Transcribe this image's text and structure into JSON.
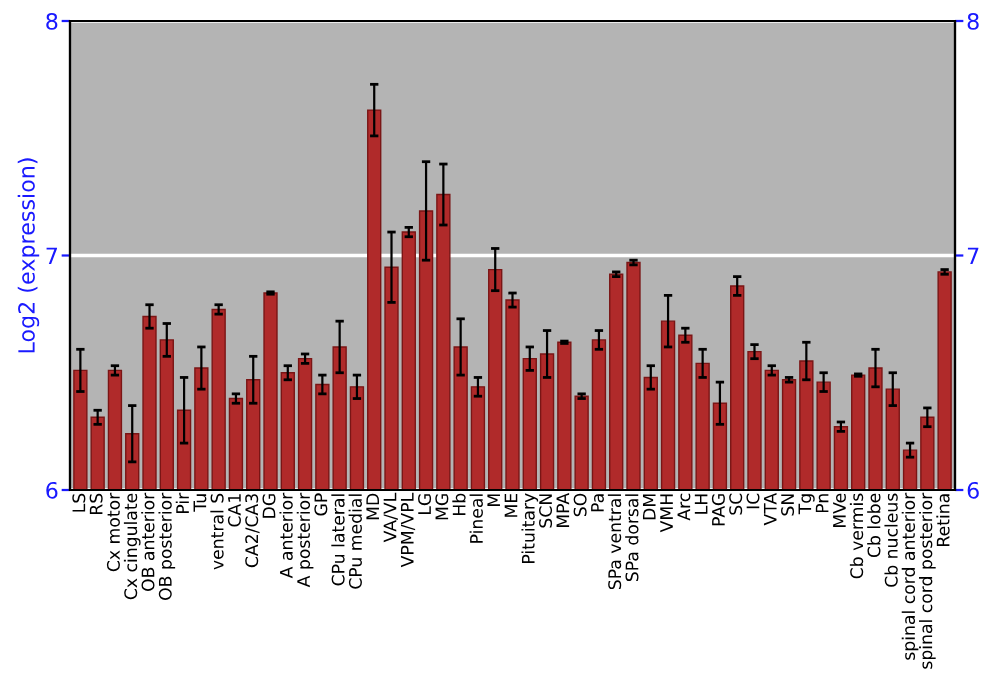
{
  "chart_data": {
    "type": "bar",
    "ylabel": "Log2 (expression)",
    "categories": [
      "LS",
      "RS",
      "Cx motor",
      "Cx cingulate",
      "OB anterior",
      "OB posterior",
      "Pir",
      "Tu",
      "ventral S",
      "CA1",
      "CA2/CA3",
      "DG",
      "A anterior",
      "A posterior",
      "GP",
      "CPu lateral",
      "CPu medial",
      "MD",
      "VA/VL",
      "VPM/VPL",
      "LG",
      "MG",
      "Hb",
      "Pineal",
      "M",
      "ME",
      "Pituitary",
      "SCN",
      "MPA",
      "SO",
      "Pa",
      "SPa ventral",
      "SPa dorsal",
      "DM",
      "VMH",
      "Arc",
      "LH",
      "PAG",
      "SC",
      "IC",
      "VTA",
      "SN",
      "Tg",
      "Pn",
      "MVe",
      "Cb vermis",
      "Cb lobe",
      "Cb nucleus",
      "spinal cord anterior",
      "spinal cord posterior",
      "Retina"
    ],
    "values": [
      6.51,
      6.31,
      6.51,
      6.24,
      6.74,
      6.64,
      6.34,
      6.52,
      6.77,
      6.39,
      6.47,
      6.84,
      6.5,
      6.56,
      6.45,
      6.61,
      6.44,
      7.62,
      6.95,
      7.1,
      7.19,
      7.26,
      6.61,
      6.44,
      6.94,
      6.81,
      6.56,
      6.58,
      6.63,
      6.4,
      6.64,
      6.92,
      6.97,
      6.48,
      6.72,
      6.66,
      6.54,
      6.37,
      6.87,
      6.59,
      6.51,
      6.47,
      6.55,
      6.46,
      6.27,
      6.49,
      6.52,
      6.43,
      6.17,
      6.31,
      6.93
    ],
    "errors": [
      0.09,
      0.03,
      0.02,
      0.12,
      0.05,
      0.07,
      0.14,
      0.09,
      0.02,
      0.02,
      0.1,
      0.005,
      0.03,
      0.02,
      0.04,
      0.11,
      0.05,
      0.11,
      0.15,
      0.02,
      0.21,
      0.13,
      0.12,
      0.04,
      0.09,
      0.03,
      0.05,
      0.1,
      0.005,
      0.01,
      0.04,
      0.01,
      0.01,
      0.05,
      0.11,
      0.03,
      0.06,
      0.09,
      0.04,
      0.03,
      0.02,
      0.01,
      0.08,
      0.04,
      0.02,
      0.005,
      0.08,
      0.07,
      0.03,
      0.04,
      0.01
    ],
    "color": "#b02a2a",
    "ylim": [
      6,
      8
    ],
    "yticks": [
      6,
      7,
      8
    ],
    "y2lim": [
      6,
      8
    ],
    "y2ticks": [
      6,
      7,
      8
    ],
    "grid": "y"
  }
}
